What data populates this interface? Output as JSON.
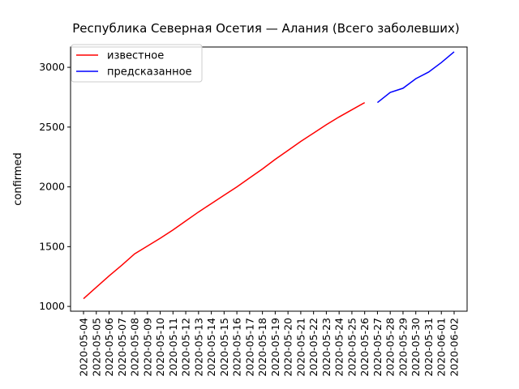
{
  "chart_data": {
    "type": "line",
    "title": "Республика Северная Осетия — Алания (Всего заболевших)",
    "y_label": "confirmed",
    "categories": [
      "2020-05-04",
      "2020-05-05",
      "2020-05-06",
      "2020-05-07",
      "2020-05-08",
      "2020-05-09",
      "2020-05-10",
      "2020-05-11",
      "2020-05-12",
      "2020-05-13",
      "2020-05-14",
      "2020-05-15",
      "2020-05-16",
      "2020-05-17",
      "2020-05-18",
      "2020-05-19",
      "2020-05-20",
      "2020-05-21",
      "2020-05-22",
      "2020-05-23",
      "2020-05-24",
      "2020-05-25",
      "2020-05-26",
      "2020-05-27",
      "2020-05-28",
      "2020-05-29",
      "2020-05-30",
      "2020-05-31",
      "2020-06-01",
      "2020-06-02"
    ],
    "series": [
      {
        "name": "известное",
        "color": "#ff0000",
        "values": [
          1065,
          1160,
          1255,
          1345,
          1440,
          1505,
          1570,
          1640,
          1715,
          1790,
          1860,
          1930,
          2000,
          2075,
          2150,
          2230,
          2305,
          2380,
          2450,
          2520,
          2585,
          2645,
          2705,
          null,
          null,
          null,
          null,
          null,
          null,
          null
        ]
      },
      {
        "name": "предсказанное",
        "color": "#0000ff",
        "values": [
          null,
          null,
          null,
          null,
          null,
          null,
          null,
          null,
          null,
          null,
          null,
          null,
          null,
          null,
          null,
          null,
          null,
          null,
          null,
          null,
          null,
          null,
          null,
          2705,
          2790,
          2825,
          2905,
          2960,
          3040,
          3130
        ]
      }
    ],
    "ylim": [
      960,
      3170
    ],
    "yticks": [
      1000,
      1500,
      2000,
      2500,
      3000
    ],
    "legend": "upper left",
    "grid": false
  }
}
